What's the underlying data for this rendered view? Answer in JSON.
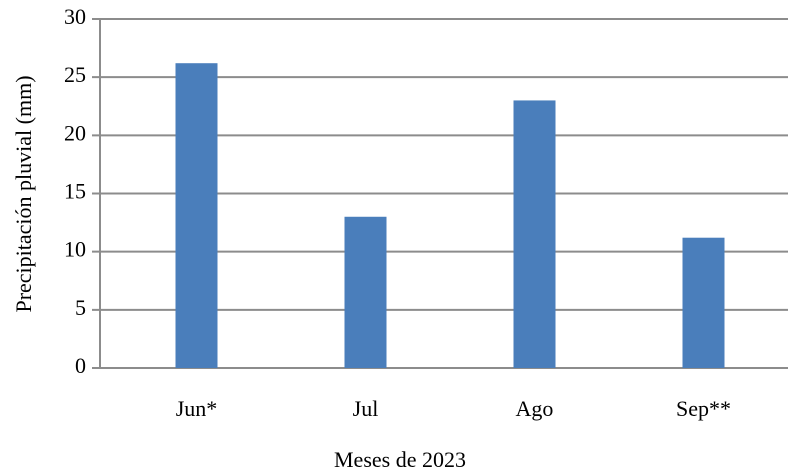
{
  "chart_data": {
    "type": "bar",
    "x_label": "Meses de 2023",
    "y_label": "Precipitación pluvial (mm)",
    "categories": [
      "Jun*",
      "Jul",
      "Ago",
      "Sep**"
    ],
    "values": [
      26.2,
      13,
      23,
      11.2
    ],
    "color": "#4a7ebb",
    "ylim": [
      0,
      30
    ],
    "yticks": [
      0,
      5,
      10,
      15,
      20,
      25,
      30
    ],
    "grid": true
  }
}
